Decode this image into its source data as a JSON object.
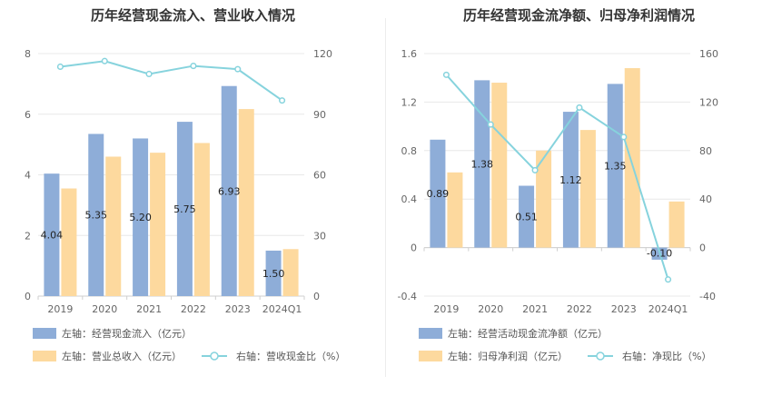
{
  "chart_data": [
    {
      "type": "bar",
      "title": "历年经营现金流入、营业收入情况",
      "categories": [
        "2019",
        "2020",
        "2021",
        "2022",
        "2023",
        "2024Q1"
      ],
      "y_left": {
        "ylim": [
          0,
          8
        ],
        "ticks": [
          0,
          2,
          4,
          6,
          8
        ]
      },
      "y_right": {
        "ylim": [
          0,
          120
        ],
        "ticks": [
          0,
          30,
          60,
          90,
          120
        ]
      },
      "series": [
        {
          "name": "左轴：经营现金流入（亿元）",
          "kind": "bar",
          "axis": "left",
          "color": "#8eadd8",
          "values": [
            4.04,
            5.35,
            5.2,
            5.75,
            6.93,
            1.5
          ],
          "labels": [
            "4.04",
            "5.35",
            "5.20",
            "5.75",
            "6.93",
            "1.50"
          ]
        },
        {
          "name": "左轴：营业总收入（亿元）",
          "kind": "bar",
          "axis": "left",
          "color": "#fdd99e",
          "values": [
            3.55,
            4.6,
            4.73,
            5.05,
            6.17,
            1.55
          ]
        },
        {
          "name": "右轴：营收现金比（%）",
          "kind": "line",
          "axis": "right",
          "color": "#86d3dd",
          "values": [
            113.5,
            116.3,
            109.9,
            113.9,
            112.3,
            96.8
          ]
        }
      ],
      "legend": "bottom",
      "grid": true
    },
    {
      "type": "bar",
      "title": "历年经营现金流净额、归母净利润情况",
      "categories": [
        "2019",
        "2020",
        "2021",
        "2022",
        "2023",
        "2024Q1"
      ],
      "y_left": {
        "ylim": [
          -0.4,
          1.6
        ],
        "ticks": [
          -0.4,
          0,
          0.4,
          0.8,
          1.2,
          1.6
        ],
        "tick_labels": [
          "-0.4",
          "0",
          "0.4",
          "0.8",
          "1.2",
          "1.6"
        ]
      },
      "y_right": {
        "ylim": [
          -40,
          160
        ],
        "ticks": [
          -40,
          0,
          40,
          80,
          120,
          160
        ]
      },
      "series": [
        {
          "name": "左轴：经营活动现金流净额（亿元）",
          "kind": "bar",
          "axis": "left",
          "color": "#8eadd8",
          "values": [
            0.89,
            1.38,
            0.51,
            1.12,
            1.35,
            -0.1
          ],
          "labels": [
            "0.89",
            "1.38",
            "0.51",
            "1.12",
            "1.35",
            "-0.10"
          ]
        },
        {
          "name": "左轴：归母净利润（亿元）",
          "kind": "bar",
          "axis": "left",
          "color": "#fdd99e",
          "values": [
            0.62,
            1.36,
            0.8,
            0.97,
            1.48,
            0.38
          ]
        },
        {
          "name": "右轴：净现比（%）",
          "kind": "line",
          "axis": "right",
          "color": "#86d3dd",
          "values": [
            142.5,
            101.5,
            63.8,
            115.5,
            91.2,
            -26.3
          ]
        }
      ],
      "legend": "bottom",
      "grid": true
    }
  ]
}
